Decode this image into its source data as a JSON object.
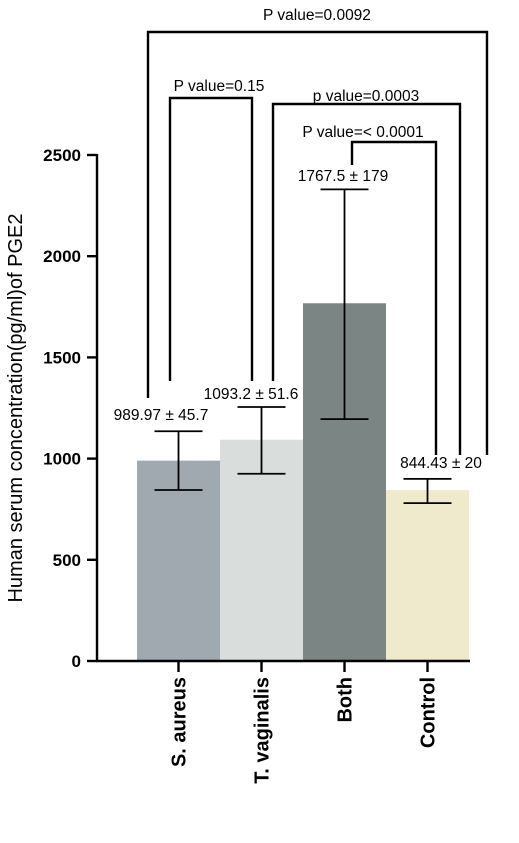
{
  "chart_data": {
    "type": "bar",
    "ylabel": "Human serum concentration(pg/ml)of PGE2",
    "ylim": [
      0,
      2500
    ],
    "yticks": [
      "0",
      "500",
      "1000",
      "1500",
      "2000",
      "2500"
    ],
    "categories": [
      "S. aureus",
      "T. vaginalis",
      "Both",
      "Control"
    ],
    "values": [
      989.97,
      1093.2,
      1767.5,
      844.43
    ],
    "error_high": [
      1135,
      1255,
      2330,
      900
    ],
    "error_low": [
      845,
      925,
      1195,
      780
    ],
    "bar_colors": [
      "#a0a9b0",
      "#d9dedd",
      "#7b8584",
      "#efeacc"
    ],
    "data_labels": [
      "989.97 ± 45.7",
      "1093.2 ± 51.6",
      "1767.5 ± 179",
      "844.43 ± 20"
    ],
    "comparisons": [
      {
        "label": "P value=0.0092",
        "from": 0,
        "to": 3
      },
      {
        "label": "P value=0.15",
        "from": 0,
        "to": 1
      },
      {
        "label": "p value=0.0003",
        "from": 1,
        "to": 3
      },
      {
        "label": "P value=< 0.0001",
        "from": 2,
        "to": 3
      }
    ],
    "grid": false,
    "legend": "none"
  }
}
